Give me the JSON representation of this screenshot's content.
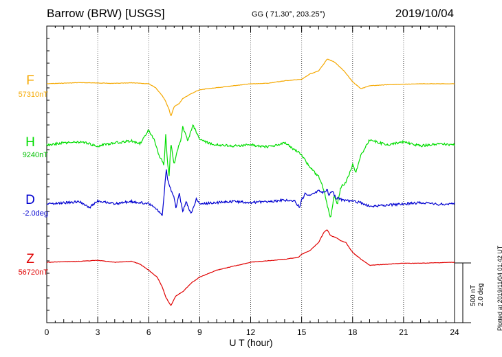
{
  "header": {
    "title": "Barrow (BRW)  [USGS]",
    "coords": "GG ( 71.30°, 203.25°)",
    "date": "2019/10/04"
  },
  "footer": {
    "plotted": "Plotted at 2019/11/04 01:42 UT",
    "scale_nt": "500 nT",
    "scale_deg": "2.0 deg"
  },
  "colors": {
    "F": "#f5a800",
    "H": "#00dd00",
    "D": "#0000d0",
    "Z": "#e00000"
  },
  "chart_data": {
    "type": "line",
    "xlabel": "U T (hour)",
    "xlim": [
      0,
      24
    ],
    "xticks": [
      "0",
      "3",
      "6",
      "9",
      "12",
      "15",
      "18",
      "21",
      "24"
    ],
    "grid": true,
    "series": [
      {
        "name": "F",
        "baseline": "57310nT",
        "x": [
          0,
          2,
          4,
          5,
          6,
          6.4,
          6.8,
          7,
          7.2,
          7.3,
          7.5,
          7.8,
          8,
          8.5,
          9,
          10,
          11,
          12,
          13,
          14,
          15,
          15.5,
          16,
          16.3,
          16.5,
          16.8,
          17,
          17.5,
          18,
          18.5,
          19,
          20,
          22,
          24
        ],
        "y": [
          0,
          12,
          4,
          10,
          0,
          -40,
          -120,
          -180,
          -260,
          -330,
          -230,
          -200,
          -150,
          -100,
          -60,
          -40,
          -20,
          0,
          5,
          30,
          45,
          100,
          130,
          200,
          250,
          230,
          210,
          130,
          20,
          -50,
          -20,
          -10,
          0,
          0
        ]
      },
      {
        "name": "H",
        "baseline": "9240nT",
        "x": [
          0,
          1,
          2,
          3,
          4,
          5,
          5.5,
          6,
          6.3,
          6.6,
          6.9,
          7,
          7.1,
          7.2,
          7.3,
          7.5,
          7.7,
          7.9,
          8,
          8.3,
          8.6,
          9,
          9.5,
          10,
          11,
          12,
          13,
          14,
          15,
          15.3,
          15.6,
          16,
          16.3,
          16.5,
          16.7,
          16.9,
          17.1,
          17.3,
          17.6,
          17.9,
          18,
          18.2,
          18.5,
          19,
          20,
          21,
          22,
          23,
          24
        ],
        "y": [
          0,
          20,
          30,
          -10,
          20,
          40,
          10,
          150,
          60,
          -100,
          -200,
          100,
          -150,
          -320,
          20,
          -200,
          -50,
          50,
          180,
          40,
          200,
          60,
          20,
          0,
          -10,
          0,
          -20,
          20,
          -100,
          -180,
          -250,
          -320,
          -450,
          -600,
          -750,
          -520,
          -600,
          -430,
          -380,
          -250,
          -200,
          -280,
          -100,
          50,
          0,
          30,
          -10,
          10,
          0
        ]
      },
      {
        "name": "D",
        "baseline": "-2.0deg",
        "x": [
          0,
          1,
          2,
          2.5,
          3,
          4,
          4.5,
          5,
          5.5,
          6,
          6.3,
          6.6,
          6.8,
          6.9,
          7,
          7.05,
          7.1,
          7.2,
          7.3,
          7.4,
          7.5,
          7.6,
          7.8,
          8,
          8.2,
          8.5,
          8.8,
          9,
          10,
          11,
          12,
          13,
          14,
          14.6,
          14.9,
          15,
          15.2,
          15.5,
          16,
          16.3,
          16.5,
          16.6,
          16.8,
          17,
          17.2,
          17.5,
          18,
          18.5,
          19,
          20,
          21,
          22,
          23,
          24
        ],
        "y": [
          0,
          0.05,
          0.08,
          -0.15,
          0.12,
          0,
          0.05,
          0.1,
          0.05,
          0,
          -0.12,
          -0.3,
          -0.45,
          0.35,
          1.2,
          1.5,
          1.0,
          0.8,
          0.6,
          0.4,
          0.3,
          -0.2,
          0.4,
          -0.3,
          0.1,
          -0.4,
          0.2,
          0,
          0.05,
          0.1,
          0.05,
          0.1,
          0.15,
          0.1,
          -0.15,
          0.15,
          0.4,
          0.35,
          0.55,
          0.45,
          0.6,
          0.35,
          0.55,
          0.25,
          0.2,
          0.15,
          0.1,
          0.05,
          -0.1,
          -0.05,
          0,
          0.05,
          -0.02,
          0.02
        ]
      },
      {
        "name": "Z",
        "baseline": "56720nT",
        "x": [
          0,
          2,
          3,
          4,
          5,
          5.5,
          6,
          6.5,
          6.8,
          7,
          7.3,
          7.6,
          8,
          8.5,
          9,
          10,
          12,
          14,
          14.8,
          15,
          15.5,
          16,
          16.3,
          16.5,
          16.7,
          17,
          17.3,
          17.6,
          18,
          18.5,
          19,
          20,
          21,
          22,
          24
        ],
        "y": [
          0,
          10,
          20,
          0,
          10,
          -20,
          -80,
          -150,
          -250,
          -350,
          -440,
          -340,
          -300,
          -210,
          -150,
          -80,
          0,
          30,
          50,
          80,
          120,
          200,
          300,
          330,
          270,
          250,
          220,
          200,
          100,
          30,
          -30,
          -20,
          -10,
          -10,
          0
        ]
      }
    ],
    "scale_bar": {
      "nT": 500,
      "deg": 2.0
    }
  }
}
